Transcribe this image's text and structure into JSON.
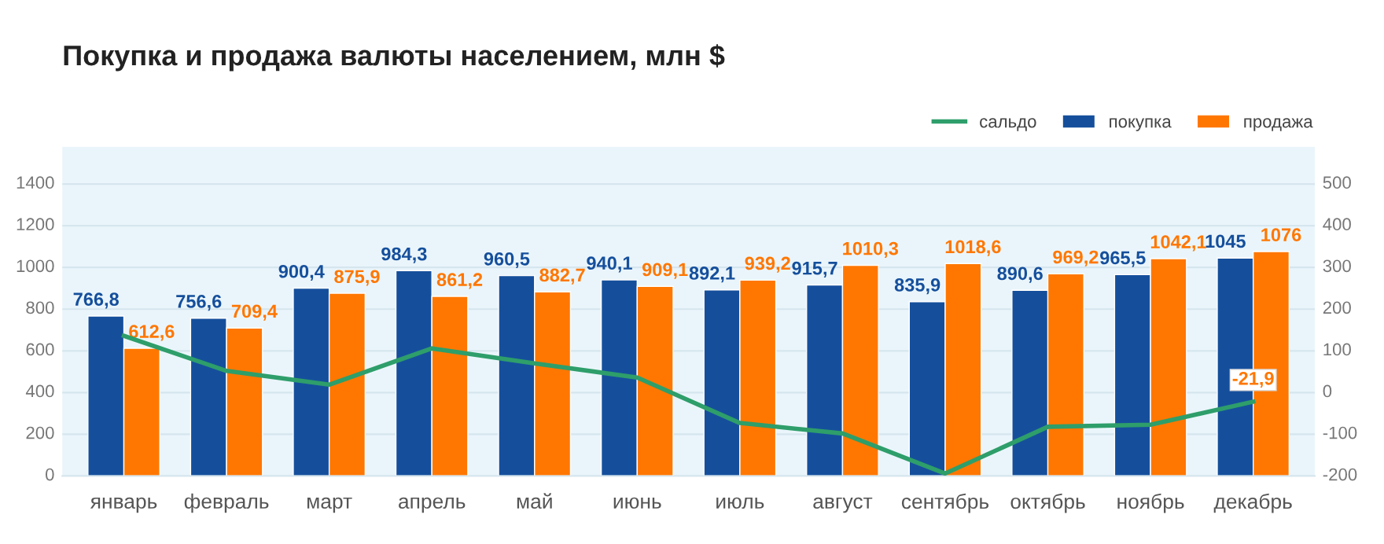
{
  "chart_data": {
    "type": "bar",
    "title": "Покупка и продажа валюты населением, млн $",
    "categories": [
      "январь",
      "февраль",
      "март",
      "апрель",
      "май",
      "июнь",
      "июль",
      "август",
      "сентябрь",
      "октябрь",
      "ноябрь",
      "декабрь"
    ],
    "series": [
      {
        "name": "сальдо",
        "type": "line",
        "axis": "y2",
        "color": "#2e9e6a",
        "values": [
          136,
          52,
          19,
          106,
          70,
          36,
          -73,
          -98,
          -194,
          -82,
          -77,
          -21.9
        ],
        "value_labels": [
          null,
          null,
          null,
          null,
          null,
          null,
          null,
          null,
          null,
          null,
          null,
          "-21,9"
        ]
      },
      {
        "name": "покупка",
        "color": "#154f9c",
        "values": [
          766.8,
          756.6,
          900.4,
          984.3,
          960.5,
          940.1,
          892.1,
          915.7,
          835.9,
          890.6,
          965.5,
          1045
        ],
        "value_labels": [
          "766,8",
          "756,6",
          "900,4",
          "984,3",
          "960,5",
          "940,1",
          "892,1",
          "915,7",
          "835,9",
          "890,6",
          "965,5",
          "1045"
        ]
      },
      {
        "name": "продажа",
        "color": "#ff7700",
        "values": [
          612.6,
          709.4,
          875.9,
          861.2,
          882.7,
          909.1,
          939.2,
          1010.3,
          1018.6,
          969.2,
          1042.1,
          1076
        ],
        "value_labels": [
          "612,6",
          "709,4",
          "875,9",
          "861,2",
          "882,7",
          "909,1",
          "939,2",
          "1010,3",
          "1018,6",
          "969,2",
          "1042,1",
          "1076"
        ]
      }
    ],
    "ylim": [
      0,
      1578
    ],
    "yticks": [
      0,
      200,
      400,
      600,
      800,
      1000,
      1200,
      1400
    ],
    "y2lim": [
      -200,
      589
    ],
    "y2ticks": [
      -200,
      -100,
      0,
      100,
      200,
      300,
      400,
      500
    ],
    "grid": "y",
    "legend": "top right"
  }
}
